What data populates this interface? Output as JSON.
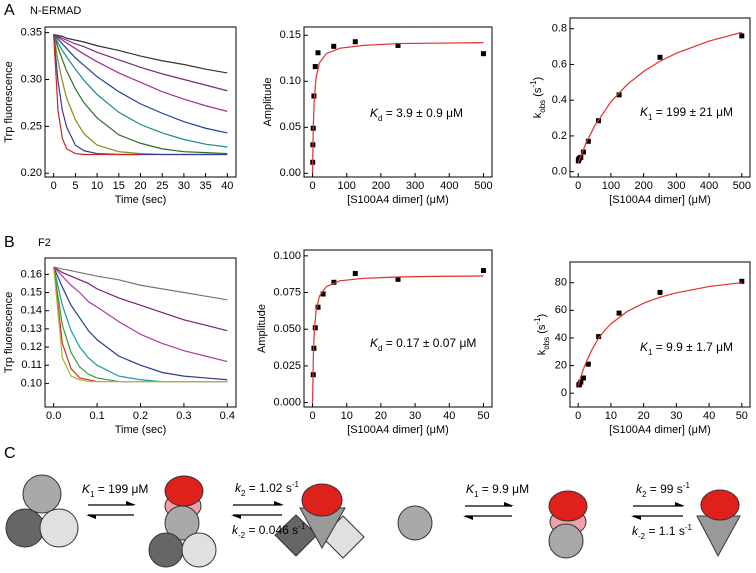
{
  "panel_labels": [
    "A",
    "B",
    "C"
  ],
  "panel_titles": [
    "N-ERMAD",
    "F2"
  ],
  "chart_data": [
    {
      "type": "line",
      "x_label": "Time (sec)",
      "y_label": "Trp fluorescence",
      "xlim": [
        -2,
        42
      ],
      "ylim": [
        0.196,
        0.356
      ],
      "xticks": [
        0,
        5,
        10,
        15,
        20,
        25,
        30,
        35,
        40
      ],
      "yticks": [
        {
          "value": 0.2,
          "label": "0.20"
        },
        0.25,
        {
          "value": 0.3,
          "label": "0.30"
        },
        0.35
      ],
      "x": [
        0,
        1,
        2,
        3,
        5,
        7,
        10,
        15,
        20,
        25,
        30,
        35,
        40
      ],
      "series": [
        {
          "color": "#333333",
          "mode": "line",
          "values": [
            0.348,
            0.347,
            0.346,
            0.344,
            0.342,
            0.34,
            0.336,
            0.331,
            0.325,
            0.32,
            0.316,
            0.311,
            0.307
          ]
        },
        {
          "color": "#7a2a7a",
          "mode": "line",
          "values": [
            0.348,
            0.346,
            0.344,
            0.342,
            0.338,
            0.335,
            0.329,
            0.321,
            0.313,
            0.306,
            0.3,
            0.294,
            0.288
          ]
        },
        {
          "color": "#a03090",
          "mode": "line",
          "values": [
            0.348,
            0.345,
            0.342,
            0.339,
            0.333,
            0.327,
            0.319,
            0.307,
            0.297,
            0.287,
            0.279,
            0.272,
            0.266
          ]
        },
        {
          "color": "#1f3f9f",
          "mode": "line",
          "values": [
            0.348,
            0.343,
            0.338,
            0.333,
            0.323,
            0.315,
            0.303,
            0.287,
            0.274,
            0.264,
            0.255,
            0.248,
            0.243
          ]
        },
        {
          "color": "#1a8a8a",
          "mode": "line",
          "values": [
            0.348,
            0.339,
            0.331,
            0.324,
            0.311,
            0.299,
            0.284,
            0.265,
            0.252,
            0.243,
            0.236,
            0.231,
            0.228
          ]
        },
        {
          "color": "#2a6e2a",
          "mode": "line",
          "values": [
            0.348,
            0.334,
            0.321,
            0.309,
            0.29,
            0.275,
            0.259,
            0.241,
            0.232,
            0.226,
            0.223,
            0.222,
            0.221
          ]
        },
        {
          "color": "#8a8a1a",
          "mode": "line",
          "values": [
            0.348,
            0.32,
            0.298,
            0.28,
            0.257,
            0.242,
            0.23,
            0.223,
            0.221,
            0.22,
            0.22,
            0.22,
            0.22
          ]
        },
        {
          "color": "#3a3a9a",
          "mode": "line",
          "values": [
            0.348,
            0.298,
            0.267,
            0.249,
            0.23,
            0.224,
            0.221,
            0.22,
            0.22,
            0.22,
            0.22,
            0.22,
            0.22
          ]
        },
        {
          "color": "#c0282a",
          "mode": "line",
          "values": [
            0.348,
            0.267,
            0.237,
            0.226,
            0.221,
            0.22,
            0.22,
            0.22,
            0.22,
            null,
            null,
            null,
            null
          ]
        }
      ]
    },
    {
      "type": "scatter",
      "x_label": "[S100A4 dimer] (μM)",
      "y_label": "Amplitude",
      "annotation": [
        {
          "i": "K"
        },
        {
          "sub": "d"
        },
        {
          "t": " = 3.9 ± 0.9 μM"
        }
      ],
      "xlim": [
        -25,
        525
      ],
      "ylim": [
        -0.004,
        0.159
      ],
      "xticks": [
        0,
        100,
        200,
        300,
        400,
        500
      ],
      "yticks": [
        {
          "value": 0,
          "label": "0.00"
        },
        0.05,
        {
          "value": 0.1,
          "label": "0.10"
        },
        0.15
      ],
      "series": [
        {
          "color": "#000000",
          "mode": "markers",
          "x": [
            0.5,
            1,
            2,
            4,
            8,
            16,
            62,
            125,
            250,
            500
          ],
          "values": [
            0.012,
            0.031,
            0.049,
            0.084,
            0.116,
            0.131,
            0.138,
            0.143,
            0.139,
            0.13
          ]
        },
        {
          "color": "#e0302a",
          "mode": "line",
          "x": [
            0,
            2,
            5,
            10,
            20,
            40,
            80,
            150,
            250,
            350,
            500
          ],
          "values": [
            0,
            0.0485,
            0.08,
            0.103,
            0.12,
            0.13,
            0.136,
            0.139,
            0.141,
            0.1414,
            0.142
          ]
        }
      ]
    },
    {
      "type": "scatter",
      "x_label": "[S100A4 dimer] (μM)",
      "y_label": [
        {
          "t": "k"
        },
        {
          "sub": "obs"
        },
        {
          "t": " (s"
        },
        {
          "sup": "-1"
        },
        {
          "t": ")"
        }
      ],
      "annotation": [
        {
          "i": "K"
        },
        {
          "sub": "1"
        },
        {
          "t": " = 199 ± 21 μM"
        }
      ],
      "xlim": [
        -25,
        525
      ],
      "ylim": [
        -0.03,
        0.86
      ],
      "xticks": [
        0,
        100,
        200,
        300,
        400,
        500
      ],
      "yticks": [
        {
          "value": 0,
          "label": "0.0"
        },
        0.2,
        0.4,
        0.6,
        0.8
      ],
      "series": [
        {
          "color": "#000000",
          "mode": "markers",
          "x": [
            0.5,
            1,
            2,
            4,
            8,
            16,
            31,
            62,
            125,
            250,
            500
          ],
          "values": [
            0.06,
            0.065,
            0.07,
            0.075,
            0.08,
            0.11,
            0.17,
            0.285,
            0.43,
            0.64,
            0.76
          ]
        },
        {
          "color": "#e0302a",
          "mode": "line",
          "x": [
            0,
            25,
            50,
            100,
            150,
            200,
            250,
            300,
            400,
            500
          ],
          "values": [
            0.05,
            0.164,
            0.255,
            0.391,
            0.488,
            0.561,
            0.618,
            0.663,
            0.731,
            0.78
          ]
        }
      ]
    },
    {
      "type": "line",
      "x_label": "Time (sec)",
      "y_label": "Trp fluorescence",
      "xlim": [
        -0.02,
        0.42
      ],
      "ylim": [
        0.087,
        0.169
      ],
      "xticks": [
        {
          "value": 0,
          "label": "0.0"
        },
        0.1,
        0.2,
        0.3,
        0.4
      ],
      "yticks": [
        {
          "value": 0.1,
          "label": "0.10"
        },
        0.11,
        0.12,
        0.13,
        0.14,
        0.15,
        0.16
      ],
      "x": [
        0,
        0.02,
        0.04,
        0.06,
        0.08,
        0.1,
        0.15,
        0.2,
        0.25,
        0.3,
        0.35,
        0.4
      ],
      "series": [
        {
          "color": "#777777",
          "mode": "line",
          "values": [
            0.164,
            0.163,
            0.162,
            0.161,
            0.16,
            0.159,
            0.157,
            0.154,
            0.152,
            0.15,
            0.148,
            0.146
          ]
        },
        {
          "color": "#7a1f7a",
          "mode": "line",
          "values": [
            0.164,
            0.161,
            0.159,
            0.157,
            0.155,
            0.152,
            0.147,
            0.143,
            0.139,
            0.135,
            0.132,
            0.129
          ]
        },
        {
          "color": "#b03aa8",
          "mode": "line",
          "values": [
            0.164,
            0.159,
            0.154,
            0.15,
            0.145,
            0.142,
            0.134,
            0.127,
            0.122,
            0.118,
            0.115,
            0.112
          ]
        },
        {
          "color": "#2a3a9a",
          "mode": "line",
          "values": [
            0.164,
            0.153,
            0.143,
            0.136,
            0.129,
            0.124,
            0.115,
            0.11,
            0.106,
            0.104,
            0.103,
            0.102
          ]
        },
        {
          "color": "#1a9a9a",
          "mode": "line",
          "values": [
            0.164,
            0.143,
            0.129,
            0.12,
            0.114,
            0.11,
            0.104,
            0.102,
            0.101,
            0.101,
            0.101,
            0.101
          ]
        },
        {
          "color": "#3a9a3a",
          "mode": "line",
          "values": [
            0.164,
            0.132,
            0.117,
            0.109,
            0.105,
            0.103,
            0.101,
            0.101,
            0.101,
            0.101,
            0.101,
            0.101
          ]
        },
        {
          "color": "#d0302a",
          "mode": "line",
          "values": [
            0.164,
            0.122,
            0.108,
            0.103,
            0.102,
            0.101,
            0.101,
            0.101,
            0.101,
            0.101,
            0.101,
            0.101
          ]
        },
        {
          "color": "#a8b82a",
          "mode": "line",
          "values": [
            0.164,
            0.114,
            0.104,
            0.102,
            0.101,
            0.101,
            0.101,
            0.101,
            0.101,
            0.101,
            0.101,
            0.101
          ]
        }
      ]
    },
    {
      "type": "scatter",
      "x_label": "[S100A4 dimer] (μM)",
      "y_label": "Amplitude",
      "annotation": [
        {
          "i": "K"
        },
        {
          "sub": "d"
        },
        {
          "t": " = 0.17 ± 0.07 μM"
        }
      ],
      "xlim": [
        -2.5,
        52.5
      ],
      "ylim": [
        -0.003,
        0.104
      ],
      "xticks": [
        0,
        10,
        20,
        30,
        40,
        50
      ],
      "yticks": [
        {
          "value": 0,
          "label": "0.000"
        },
        {
          "value": 0.025,
          "label": "0.025"
        },
        {
          "value": 0.05,
          "label": "0.050"
        },
        {
          "value": 0.075,
          "label": "0.075"
        },
        {
          "value": 0.1,
          "label": "0.100"
        }
      ],
      "series": [
        {
          "color": "#000000",
          "mode": "markers",
          "x": [
            0.2,
            0.4,
            0.8,
            1.6,
            3.1,
            6.25,
            12.5,
            25,
            50
          ],
          "values": [
            0.019,
            0.037,
            0.051,
            0.065,
            0.074,
            0.082,
            0.088,
            0.084,
            0.09
          ]
        },
        {
          "color": "#e0302a",
          "mode": "line",
          "x": [
            0,
            0.25,
            0.5,
            1,
            2,
            4,
            8,
            15,
            25,
            35,
            50
          ],
          "values": [
            0,
            0.033,
            0.048,
            0.062,
            0.0725,
            0.079,
            0.083,
            0.0847,
            0.0856,
            0.086,
            0.0863
          ]
        }
      ]
    },
    {
      "type": "scatter",
      "x_label": "[S100A4 dimer] (μM)",
      "y_label": [
        {
          "t": "k"
        },
        {
          "sub": "obs"
        },
        {
          "t": " (s"
        },
        {
          "sup": "-1"
        },
        {
          "t": ")"
        }
      ],
      "annotation": [
        {
          "i": "K"
        },
        {
          "sub": "1"
        },
        {
          "t": " = 9.9 ± 1.7 μM"
        }
      ],
      "xlim": [
        -2.5,
        52.5
      ],
      "ylim": [
        -10,
        95
      ],
      "xticks": [
        0,
        10,
        20,
        30,
        40,
        50
      ],
      "yticks": [
        0,
        20,
        40,
        60,
        80
      ],
      "series": [
        {
          "color": "#000000",
          "mode": "markers",
          "x": [
            0.2,
            0.4,
            0.8,
            1.6,
            3.1,
            6.25,
            12.5,
            25,
            50
          ],
          "values": [
            6,
            6.5,
            8,
            11,
            21,
            41,
            58,
            73,
            81
          ]
        },
        {
          "color": "#e0302a",
          "mode": "line",
          "x": [
            0,
            1,
            2,
            4,
            6,
            8,
            10,
            15,
            20,
            25,
            30,
            40,
            50
          ],
          "values": [
            5,
            13.3,
            20.1,
            30.6,
            38.9,
            45.2,
            50.2,
            59.2,
            65.2,
            69.5,
            72.7,
            77.2,
            80.1
          ]
        }
      ]
    }
  ],
  "scheme": {
    "labels": [
      [
        {
          "i": "K"
        },
        {
          "sub": "1"
        },
        {
          "t": " = 199 μM"
        }
      ],
      [
        {
          "i": "k"
        },
        {
          "sub": "2"
        },
        {
          "t": " = 1.02 s"
        },
        {
          "sup": "-1"
        }
      ],
      [
        {
          "i": "k"
        },
        {
          "sub": "-2"
        },
        {
          "t": " = 0.046 s"
        },
        {
          "sup": "-1"
        }
      ],
      [
        {
          "i": "K"
        },
        {
          "sub": "1"
        },
        {
          "t": " = 9.9 μM"
        }
      ],
      [
        {
          "i": "k"
        },
        {
          "sub": "2"
        },
        {
          "t": " = 99 s"
        },
        {
          "sup": "-1"
        }
      ],
      [
        {
          "i": "k"
        },
        {
          "sub": "-2"
        },
        {
          "t": " = 1.1 s"
        },
        {
          "sup": "-1"
        }
      ]
    ]
  }
}
